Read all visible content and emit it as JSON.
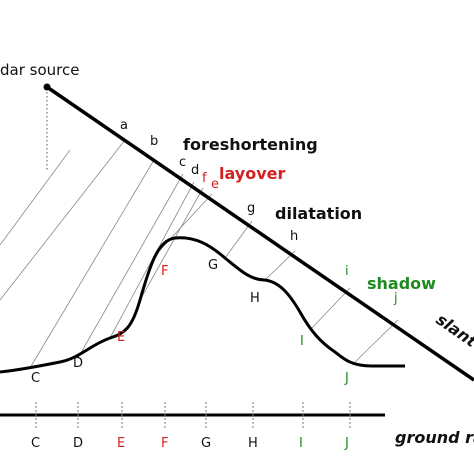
{
  "source_label": "dar source",
  "slant_points": [
    "a",
    "b",
    "c",
    "d",
    "e",
    "f",
    "g",
    "h",
    "i",
    "j"
  ],
  "regions": {
    "foreshortening": "foreshortening",
    "layover": "layover",
    "dilatation": "dilatation",
    "shadow": "shadow"
  },
  "slant_label": "slant",
  "terrain_points": [
    "C",
    "D",
    "E",
    "F",
    "G",
    "H",
    "I",
    "J"
  ],
  "ground_points": [
    "C",
    "D",
    "E",
    "F",
    "G",
    "H",
    "I",
    "J"
  ],
  "ground_label": "ground ra"
}
